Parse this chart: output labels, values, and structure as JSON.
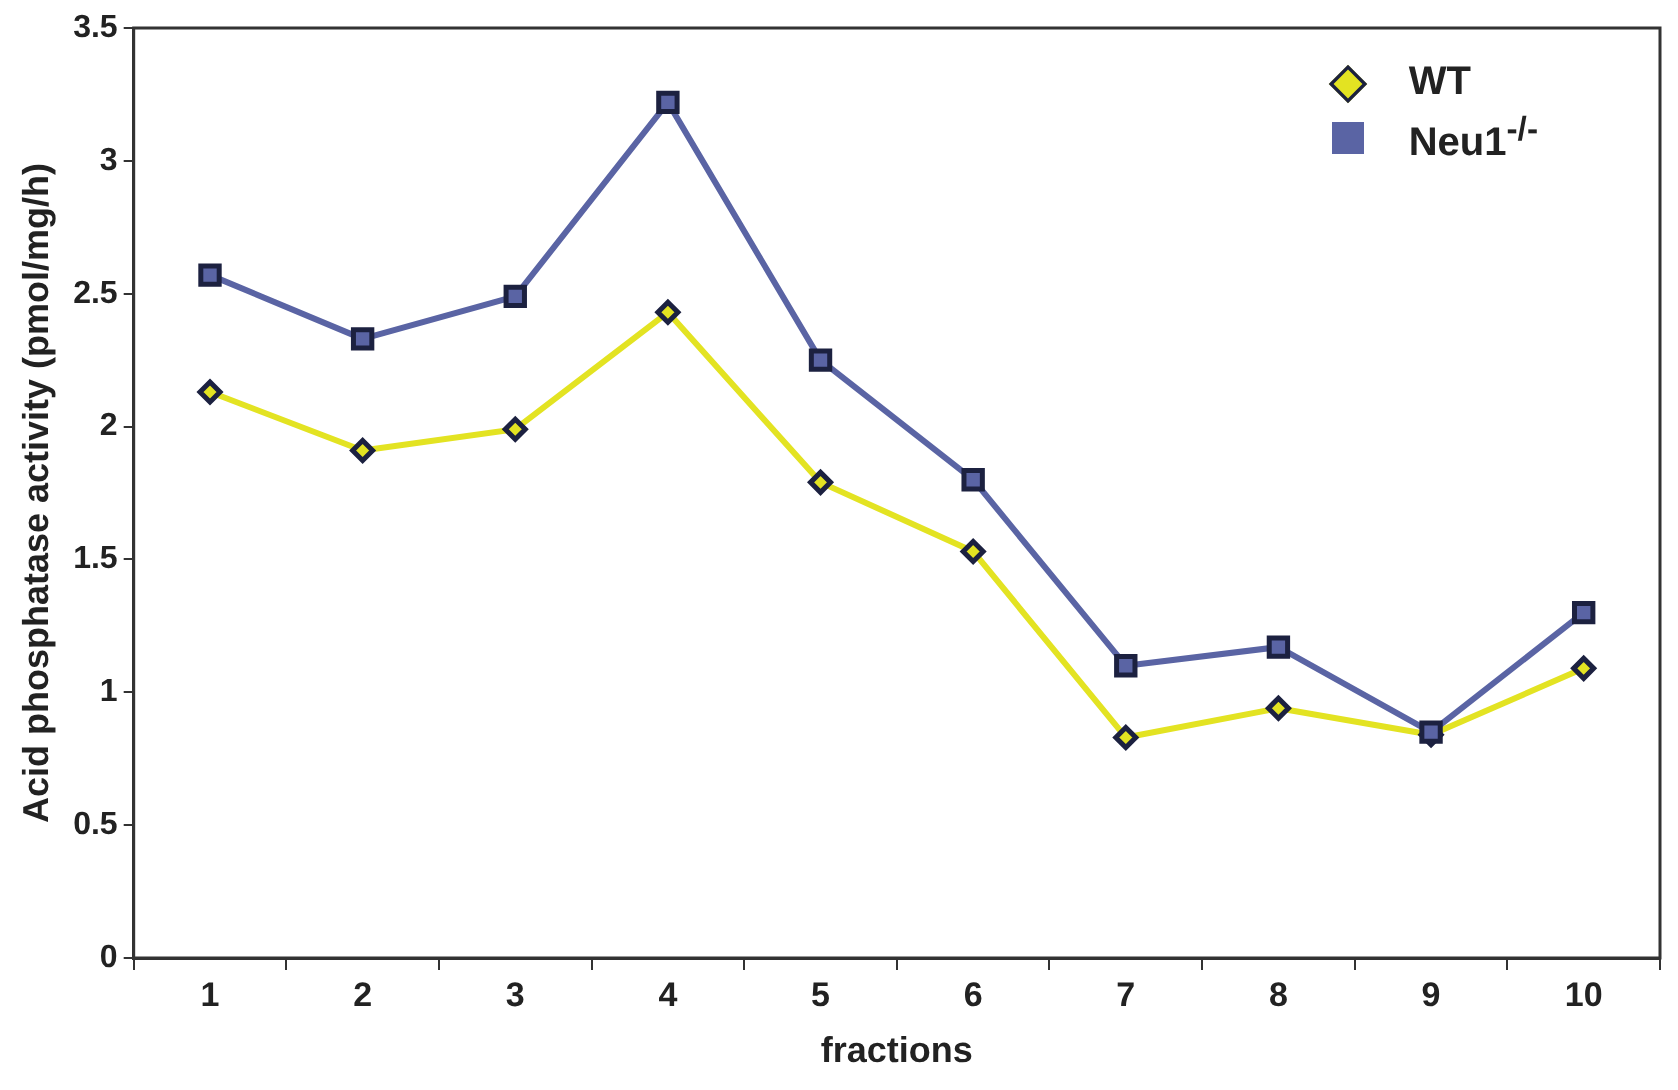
{
  "chart_data": {
    "type": "line",
    "xlabel": "fractions",
    "ylabel": "Acid phosphatase activity (pmol/mg/h)",
    "categories": [
      "1",
      "2",
      "3",
      "4",
      "5",
      "6",
      "7",
      "8",
      "9",
      "10"
    ],
    "series": [
      {
        "name": "WT",
        "color": "#e3e322",
        "marker": "diamond",
        "values": [
          2.13,
          1.91,
          1.99,
          2.43,
          1.79,
          1.53,
          0.83,
          0.94,
          0.84,
          1.09
        ]
      },
      {
        "name": "Neu1$^{-/-}$",
        "color": "#5a64a4",
        "marker": "square",
        "values": [
          2.57,
          2.33,
          2.49,
          3.22,
          2.25,
          1.8,
          1.1,
          1.17,
          0.85,
          1.3
        ]
      }
    ],
    "ylim": [
      0,
      3.5
    ],
    "yticks": [
      0,
      0.5,
      1,
      1.5,
      2,
      2.5,
      3,
      3.5
    ],
    "grid": false,
    "legend": "top right",
    "line_style": "solid"
  }
}
